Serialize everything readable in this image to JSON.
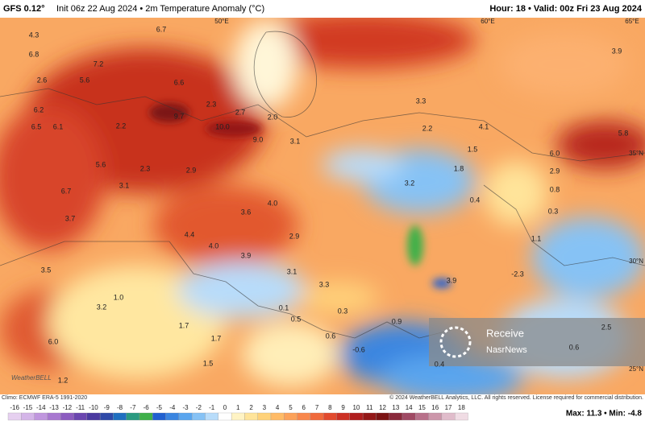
{
  "header": {
    "model": "GFS 0.12°",
    "title": "Init 06z 22 Aug 2024 • 2m Temperature Anomaly (°C)",
    "valid": "Hour: 18 • Valid: 00z Fri 23 Aug 2024"
  },
  "map": {
    "labels": [
      "4.3",
      "6.7",
      "6.8",
      "7.2",
      "2.6",
      "5.6",
      "6.6",
      "6.2",
      "9.7",
      "2.3",
      "2.7",
      "2.0",
      "6.5",
      "6.1",
      "2.2",
      "10.0",
      "9.0",
      "3.1",
      "3.3",
      "2.2",
      "4.1",
      "1.5",
      "3.9",
      "5.8",
      "6.0",
      "5.6",
      "2.3",
      "2.9",
      "1.8",
      "3.2",
      "0.4",
      "0.8",
      "2.9",
      "3.1",
      "6.7",
      "3.6",
      "4.0",
      "0.3",
      "3.7",
      "4.4",
      "4.0",
      "2.9",
      "1.1",
      "3.9",
      "3.5",
      "3.1",
      "3.3",
      "3.9",
      "-2.3",
      "1.0",
      "3.2",
      "0.1",
      "0.3",
      "1.7",
      "0.5",
      "0.9",
      "2.5",
      "0.6",
      "1.7",
      "6.0",
      "-0.6",
      "0.6",
      "1.5",
      "1.2",
      "0.4"
    ],
    "coords": [
      "50°E",
      "60°E",
      "65°E",
      "35°N",
      "30°N",
      "25°N"
    ]
  },
  "colorbar": {
    "ticks": [
      -16,
      -15,
      -14,
      -13,
      -12,
      -11,
      -10,
      -9,
      -8,
      -7,
      -6,
      -5,
      -4,
      -3,
      -2,
      -1,
      0,
      1,
      2,
      3,
      4,
      5,
      6,
      7,
      8,
      9,
      10,
      11,
      12,
      13,
      14,
      15,
      16,
      17,
      18
    ],
    "colors": [
      "#e6d0f0",
      "#d4b5e8",
      "#c096de",
      "#a878d0",
      "#8c5cc0",
      "#6b46b0",
      "#4b3aa0",
      "#2f4aa8",
      "#1f6fc0",
      "#2a9a80",
      "#3fb04a",
      "#2060d0",
      "#3a85e0",
      "#5aa5ee",
      "#86c2f5",
      "#b8dcfa",
      "#ffffff",
      "#fff3c4",
      "#ffe49a",
      "#ffd27a",
      "#ffbb66",
      "#fca25a",
      "#f8874c",
      "#f06a3c",
      "#e24a2e",
      "#cc3024",
      "#b01e1e",
      "#941818",
      "#7c1414",
      "#8a2a3c",
      "#a04a64",
      "#b8708a",
      "#cc96aa",
      "#e0bccb",
      "#f0dce4"
    ]
  },
  "footer": {
    "climo": "Climo: ECMWF ERA-5 1991-2020",
    "copyright": "© 2024 WeatherBELL Analytics, LLC. All rights reserved. License required for commercial distribution.",
    "logo": "WeatherBELL",
    "stats": "Max: 11.3 • Min: -4.8"
  },
  "watermark": [
    "Receive",
    "NasrNews"
  ]
}
